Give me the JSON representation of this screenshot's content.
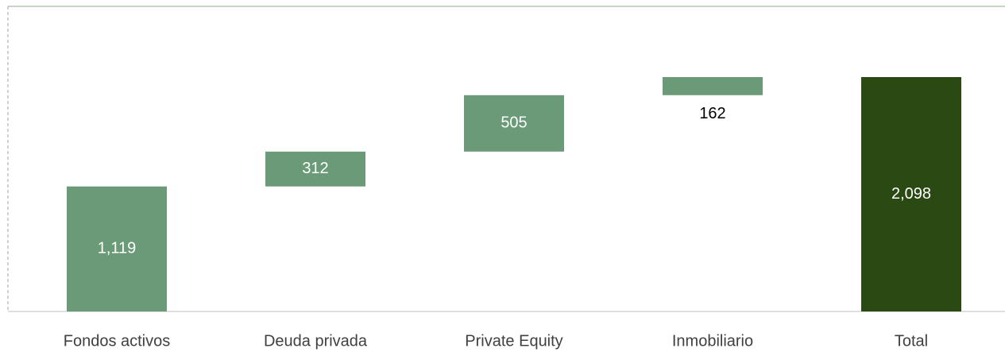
{
  "chart_data": {
    "type": "waterfall",
    "categories": [
      "Fondos activos",
      "Deuda privada",
      "Private Equity",
      "Inmobiliario",
      "Total"
    ],
    "values": [
      1119,
      312,
      505,
      162,
      2098
    ],
    "value_labels": [
      "1,119",
      "312",
      "505",
      "162",
      "2,098"
    ],
    "colors": [
      "#6b9a78",
      "#6b9a78",
      "#6b9a78",
      "#6b9a78",
      "#2b4a13"
    ]
  }
}
